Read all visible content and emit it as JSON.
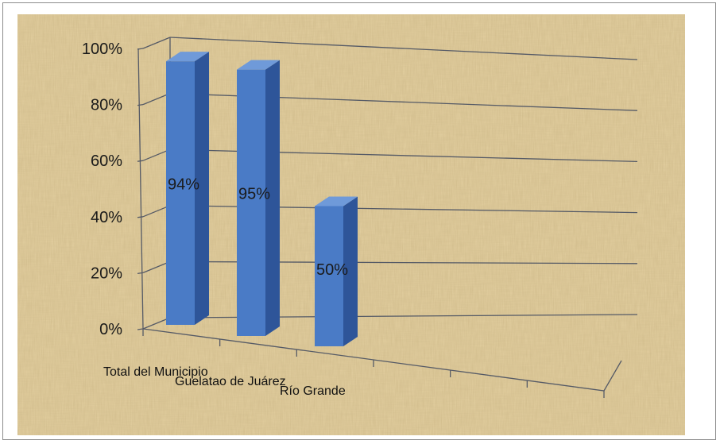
{
  "chart_data": {
    "type": "bar",
    "style": "3d-column",
    "categories": [
      "Total del Municipio",
      "Guelatao de Juárez",
      "Río Grande"
    ],
    "values": [
      94,
      95,
      50
    ],
    "data_labels": [
      "94%",
      "95%",
      "50%"
    ],
    "y_ticks": [
      "0%",
      "20%",
      "40%",
      "60%",
      "80%",
      "100%"
    ],
    "ylim": [
      0,
      100
    ],
    "grid": true,
    "legend": "none",
    "title": "",
    "xlabel": "",
    "ylabel": "",
    "colors": {
      "bar_front": "#4a7bc6",
      "bar_side": "#2e5599",
      "bar_top": "#6f9ad9",
      "gridline": "#555a66",
      "background": "#e3cfa0"
    }
  }
}
